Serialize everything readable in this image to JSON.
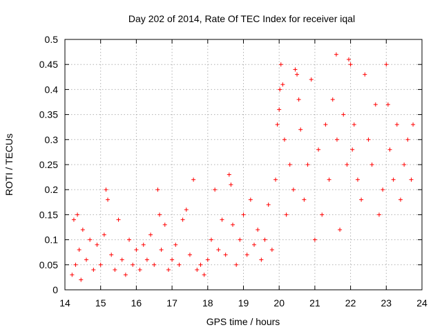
{
  "chart_data": {
    "type": "scatter",
    "title": "Day 202 of 2014, Rate Of TEC Index for receiver iqal",
    "xlabel": "GPS time / hours",
    "ylabel": "ROTI / TECUs",
    "xlim": [
      14,
      24
    ],
    "ylim": [
      0,
      0.5
    ],
    "x_ticks": [
      14,
      15,
      16,
      17,
      18,
      19,
      20,
      21,
      22,
      23,
      24
    ],
    "y_ticks": [
      0,
      0.05,
      0.1,
      0.15,
      0.2,
      0.25,
      0.3,
      0.35,
      0.4,
      0.45,
      0.5
    ],
    "x_tick_labels": [
      "14",
      "15",
      "16",
      "17",
      "18",
      "19",
      "20",
      "21",
      "22",
      "23",
      "24"
    ],
    "y_tick_labels": [
      "0",
      "0.05",
      "0.1",
      "0.15",
      "0.2",
      "0.25",
      "0.3",
      "0.35",
      "0.4",
      "0.45",
      "0.5"
    ],
    "grid": true,
    "marker": "+",
    "series_color": "#ff0000",
    "series": [
      {
        "name": "ROTI",
        "x": [
          14.2,
          14.25,
          14.3,
          14.35,
          14.4,
          14.45,
          14.5,
          14.6,
          14.7,
          14.8,
          14.9,
          15.0,
          15.1,
          15.15,
          15.2,
          15.3,
          15.4,
          15.5,
          15.6,
          15.7,
          15.8,
          15.9,
          16.0,
          16.1,
          16.2,
          16.3,
          16.4,
          16.5,
          16.6,
          16.65,
          16.7,
          16.8,
          16.9,
          17.0,
          17.1,
          17.2,
          17.3,
          17.4,
          17.5,
          17.6,
          17.7,
          17.8,
          17.9,
          18.0,
          18.1,
          18.2,
          18.3,
          18.4,
          18.5,
          18.6,
          18.65,
          18.7,
          18.8,
          18.9,
          19.0,
          19.1,
          19.2,
          19.3,
          19.4,
          19.5,
          19.6,
          19.7,
          19.8,
          19.9,
          19.95,
          20.0,
          20.02,
          20.05,
          20.1,
          20.15,
          20.2,
          20.3,
          20.4,
          20.45,
          20.5,
          20.55,
          20.6,
          20.7,
          20.8,
          20.9,
          21.0,
          21.1,
          21.2,
          21.3,
          21.4,
          21.5,
          21.6,
          21.62,
          21.7,
          21.8,
          21.9,
          21.95,
          22.0,
          22.05,
          22.1,
          22.2,
          22.3,
          22.4,
          22.5,
          22.6,
          22.7,
          22.8,
          22.9,
          23.0,
          23.05,
          23.1,
          23.2,
          23.3,
          23.4,
          23.5,
          23.6,
          23.7,
          23.75
        ],
        "values": [
          0.03,
          0.14,
          0.05,
          0.15,
          0.08,
          0.02,
          0.12,
          0.06,
          0.1,
          0.04,
          0.09,
          0.05,
          0.11,
          0.2,
          0.18,
          0.07,
          0.04,
          0.14,
          0.06,
          0.03,
          0.1,
          0.05,
          0.08,
          0.04,
          0.09,
          0.06,
          0.11,
          0.05,
          0.2,
          0.15,
          0.08,
          0.13,
          0.04,
          0.06,
          0.09,
          0.05,
          0.14,
          0.16,
          0.07,
          0.22,
          0.04,
          0.05,
          0.03,
          0.06,
          0.1,
          0.2,
          0.08,
          0.14,
          0.07,
          0.23,
          0.21,
          0.13,
          0.05,
          0.1,
          0.15,
          0.07,
          0.18,
          0.09,
          0.12,
          0.06,
          0.1,
          0.17,
          0.08,
          0.22,
          0.33,
          0.36,
          0.4,
          0.45,
          0.41,
          0.3,
          0.15,
          0.25,
          0.2,
          0.44,
          0.43,
          0.38,
          0.32,
          0.18,
          0.25,
          0.42,
          0.1,
          0.28,
          0.15,
          0.33,
          0.22,
          0.38,
          0.47,
          0.3,
          0.12,
          0.35,
          0.25,
          0.46,
          0.45,
          0.28,
          0.33,
          0.22,
          0.18,
          0.43,
          0.3,
          0.25,
          0.37,
          0.15,
          0.2,
          0.45,
          0.37,
          0.28,
          0.22,
          0.33,
          0.18,
          0.25,
          0.3,
          0.22,
          0.33
        ]
      }
    ]
  }
}
